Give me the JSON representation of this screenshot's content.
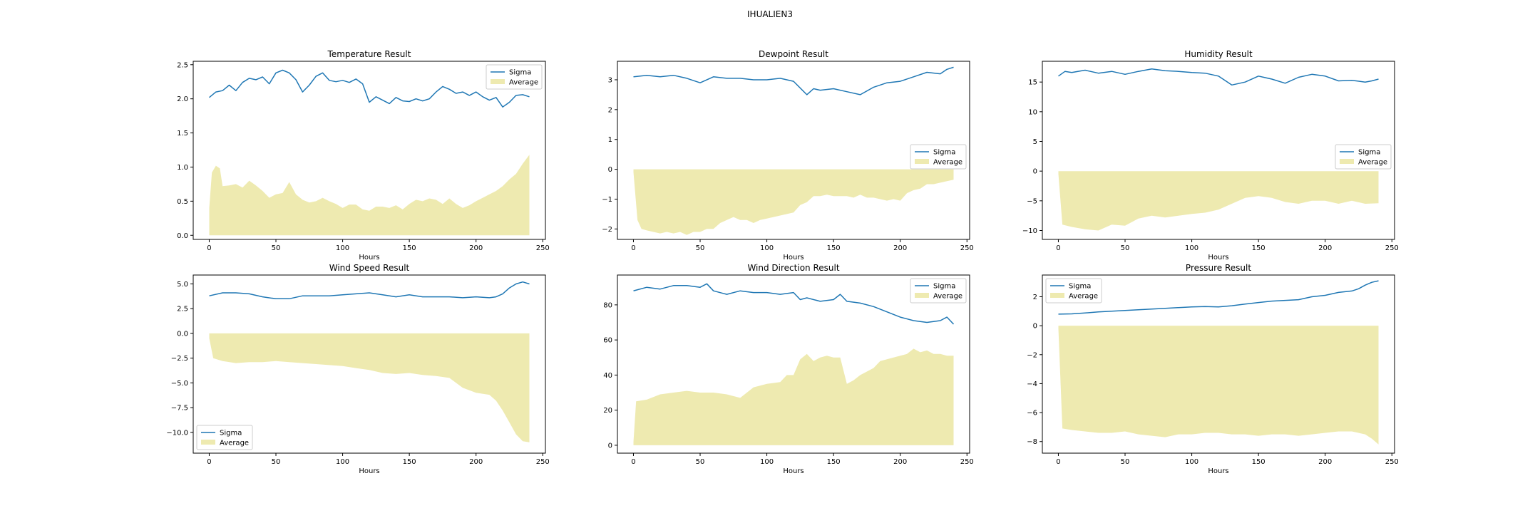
{
  "figure": {
    "suptitle": "IHUALIEN3"
  },
  "colors": {
    "sigma": "#1f77b4",
    "average": "#eeeab0",
    "legend_edge": "#cccccc"
  },
  "chart_data": [
    {
      "type": "area",
      "title": "Temperature Result",
      "xlabel": "Hours",
      "ylabel": "",
      "xlim": [
        -12,
        252
      ],
      "ylim": [
        -0.06,
        2.55
      ],
      "xticks": [
        0,
        50,
        100,
        150,
        200,
        250
      ],
      "yticks": [
        0.0,
        0.5,
        1.0,
        1.5,
        2.0,
        2.5
      ],
      "ytick_labels": [
        "0.0",
        "0.5",
        "1.0",
        "1.5",
        "2.0",
        "2.5"
      ],
      "legend": "top-right",
      "series": [
        {
          "name": "Sigma",
          "kind": "line",
          "x": [
            0,
            5,
            10,
            15,
            20,
            25,
            30,
            35,
            40,
            45,
            50,
            55,
            60,
            65,
            70,
            75,
            80,
            85,
            90,
            95,
            100,
            105,
            110,
            115,
            120,
            125,
            130,
            135,
            140,
            145,
            150,
            155,
            160,
            165,
            170,
            175,
            180,
            185,
            190,
            195,
            200,
            205,
            210,
            215,
            220,
            225,
            230,
            235,
            240
          ],
          "values": [
            2.02,
            2.1,
            2.12,
            2.2,
            2.12,
            2.24,
            2.3,
            2.28,
            2.32,
            2.22,
            2.38,
            2.42,
            2.38,
            2.28,
            2.1,
            2.2,
            2.33,
            2.38,
            2.27,
            2.25,
            2.27,
            2.24,
            2.29,
            2.22,
            1.95,
            2.03,
            1.98,
            1.93,
            2.02,
            1.97,
            1.96,
            2.0,
            1.97,
            2.0,
            2.1,
            2.18,
            2.14,
            2.08,
            2.1,
            2.05,
            2.1,
            2.03,
            1.98,
            2.02,
            1.88,
            1.95,
            2.05,
            2.06,
            2.03
          ]
        },
        {
          "name": "Average",
          "kind": "area",
          "x": [
            0,
            2,
            5,
            8,
            10,
            15,
            20,
            25,
            30,
            35,
            40,
            45,
            50,
            55,
            60,
            65,
            70,
            75,
            80,
            85,
            90,
            95,
            100,
            105,
            110,
            115,
            120,
            125,
            130,
            135,
            140,
            145,
            150,
            155,
            160,
            165,
            170,
            175,
            180,
            185,
            190,
            195,
            200,
            205,
            210,
            215,
            220,
            225,
            230,
            235,
            240
          ],
          "values": [
            0.4,
            0.92,
            1.02,
            0.98,
            0.72,
            0.73,
            0.75,
            0.7,
            0.8,
            0.73,
            0.65,
            0.55,
            0.6,
            0.62,
            0.78,
            0.6,
            0.52,
            0.48,
            0.5,
            0.55,
            0.5,
            0.46,
            0.4,
            0.45,
            0.45,
            0.38,
            0.36,
            0.42,
            0.42,
            0.4,
            0.44,
            0.38,
            0.46,
            0.52,
            0.5,
            0.54,
            0.52,
            0.46,
            0.54,
            0.46,
            0.4,
            0.44,
            0.5,
            0.55,
            0.6,
            0.65,
            0.72,
            0.82,
            0.9,
            1.05,
            1.18
          ]
        }
      ]
    },
    {
      "type": "area",
      "title": "Dewpoint Result",
      "xlabel": "Hours",
      "ylabel": "",
      "xlim": [
        -12,
        252
      ],
      "ylim": [
        -2.35,
        3.62
      ],
      "xticks": [
        0,
        50,
        100,
        150,
        200,
        250
      ],
      "yticks": [
        -2,
        -1,
        0,
        1,
        2,
        3
      ],
      "ytick_labels": [
        "−2",
        "−1",
        "0",
        "1",
        "2",
        "3"
      ],
      "legend": "center-right",
      "series": [
        {
          "name": "Sigma",
          "kind": "line",
          "x": [
            0,
            10,
            20,
            30,
            40,
            50,
            60,
            70,
            80,
            90,
            100,
            110,
            120,
            130,
            135,
            140,
            150,
            160,
            170,
            180,
            190,
            200,
            210,
            220,
            230,
            235,
            240
          ],
          "values": [
            3.1,
            3.15,
            3.1,
            3.15,
            3.05,
            2.9,
            3.1,
            3.05,
            3.05,
            3.0,
            3.0,
            3.05,
            2.95,
            2.5,
            2.7,
            2.65,
            2.7,
            2.6,
            2.5,
            2.75,
            2.9,
            2.95,
            3.1,
            3.25,
            3.2,
            3.35,
            3.42
          ]
        },
        {
          "name": "Average",
          "kind": "area",
          "x": [
            0,
            3,
            6,
            10,
            15,
            20,
            25,
            30,
            35,
            40,
            45,
            50,
            55,
            60,
            65,
            70,
            75,
            80,
            85,
            90,
            95,
            100,
            105,
            110,
            115,
            120,
            125,
            130,
            135,
            140,
            145,
            150,
            155,
            160,
            165,
            170,
            175,
            180,
            185,
            190,
            195,
            200,
            205,
            210,
            215,
            220,
            225,
            230,
            235,
            240
          ],
          "values": [
            -0.1,
            -1.7,
            -2.0,
            -2.05,
            -2.1,
            -2.15,
            -2.1,
            -2.15,
            -2.1,
            -2.2,
            -2.1,
            -2.1,
            -2.0,
            -2.0,
            -1.8,
            -1.7,
            -1.6,
            -1.7,
            -1.7,
            -1.8,
            -1.7,
            -1.65,
            -1.6,
            -1.55,
            -1.5,
            -1.45,
            -1.2,
            -1.1,
            -0.9,
            -0.9,
            -0.85,
            -0.9,
            -0.9,
            -0.9,
            -0.95,
            -0.85,
            -0.95,
            -0.95,
            -1.0,
            -1.05,
            -1.0,
            -1.05,
            -0.8,
            -0.7,
            -0.65,
            -0.5,
            -0.5,
            -0.45,
            -0.4,
            -0.35
          ]
        }
      ]
    },
    {
      "type": "area",
      "title": "Humidity Result",
      "xlabel": "Hours",
      "ylabel": "",
      "xlim": [
        -12,
        252
      ],
      "ylim": [
        -11.5,
        18.5
      ],
      "xticks": [
        0,
        50,
        100,
        150,
        200,
        250
      ],
      "yticks": [
        -10,
        -5,
        0,
        5,
        10,
        15
      ],
      "ytick_labels": [
        "−10",
        "−5",
        "0",
        "5",
        "10",
        "15"
      ],
      "legend": "center-right",
      "series": [
        {
          "name": "Sigma",
          "kind": "line",
          "x": [
            0,
            5,
            10,
            20,
            30,
            40,
            50,
            60,
            70,
            80,
            90,
            100,
            110,
            120,
            130,
            140,
            150,
            160,
            170,
            180,
            190,
            200,
            210,
            220,
            230,
            235,
            240
          ],
          "values": [
            16.0,
            16.8,
            16.6,
            17.0,
            16.5,
            16.8,
            16.3,
            16.8,
            17.2,
            16.9,
            16.8,
            16.6,
            16.5,
            16.0,
            14.5,
            15.0,
            16.0,
            15.5,
            14.8,
            15.8,
            16.3,
            16.0,
            15.2,
            15.3,
            15.0,
            15.2,
            15.5
          ]
        },
        {
          "name": "Average",
          "kind": "area",
          "x": [
            0,
            3,
            10,
            20,
            30,
            40,
            50,
            60,
            70,
            80,
            90,
            100,
            110,
            120,
            130,
            140,
            150,
            160,
            170,
            180,
            190,
            200,
            210,
            220,
            230,
            240
          ],
          "values": [
            -0.5,
            -9.0,
            -9.4,
            -9.8,
            -10.0,
            -9.0,
            -9.2,
            -8.0,
            -7.5,
            -7.8,
            -7.5,
            -7.2,
            -7.0,
            -6.5,
            -5.5,
            -4.5,
            -4.2,
            -4.5,
            -5.2,
            -5.5,
            -5.0,
            -5.0,
            -5.5,
            -5.0,
            -5.5,
            -5.4
          ]
        }
      ]
    },
    {
      "type": "area",
      "title": "Wind Speed Result",
      "xlabel": "Hours",
      "ylabel": "",
      "xlim": [
        -12,
        252
      ],
      "ylim": [
        -12.1,
        5.9
      ],
      "xticks": [
        0,
        50,
        100,
        150,
        200,
        250
      ],
      "yticks": [
        -10.0,
        -7.5,
        -5.0,
        -2.5,
        0.0,
        2.5,
        5.0
      ],
      "ytick_labels": [
        "−10.0",
        "−7.5",
        "−5.0",
        "−2.5",
        "0.0",
        "2.5",
        "5.0"
      ],
      "legend": "bottom-left",
      "series": [
        {
          "name": "Sigma",
          "kind": "line",
          "x": [
            0,
            10,
            20,
            30,
            40,
            50,
            60,
            70,
            80,
            90,
            100,
            110,
            120,
            130,
            140,
            150,
            160,
            170,
            180,
            190,
            200,
            210,
            215,
            220,
            225,
            230,
            235,
            240
          ],
          "values": [
            3.8,
            4.1,
            4.1,
            4.0,
            3.7,
            3.5,
            3.5,
            3.8,
            3.8,
            3.8,
            3.9,
            4.0,
            4.1,
            3.9,
            3.7,
            3.9,
            3.7,
            3.7,
            3.7,
            3.6,
            3.7,
            3.6,
            3.7,
            4.0,
            4.6,
            5.0,
            5.2,
            5.0
          ]
        },
        {
          "name": "Average",
          "kind": "area",
          "x": [
            0,
            3,
            10,
            20,
            30,
            40,
            50,
            60,
            70,
            80,
            90,
            100,
            110,
            120,
            130,
            140,
            150,
            160,
            170,
            180,
            190,
            200,
            210,
            215,
            220,
            225,
            230,
            235,
            240
          ],
          "values": [
            -0.5,
            -2.5,
            -2.8,
            -3.0,
            -2.9,
            -2.9,
            -2.8,
            -2.9,
            -3.0,
            -3.1,
            -3.2,
            -3.3,
            -3.5,
            -3.7,
            -4.0,
            -4.1,
            -4.0,
            -4.2,
            -4.3,
            -4.5,
            -5.5,
            -6.0,
            -6.2,
            -6.8,
            -7.8,
            -9.0,
            -10.2,
            -10.9,
            -11.0
          ]
        }
      ]
    },
    {
      "type": "area",
      "title": "Wind Direction Result",
      "xlabel": "Hours",
      "ylabel": "",
      "xlim": [
        -12,
        252
      ],
      "ylim": [
        -4.5,
        97
      ],
      "xticks": [
        0,
        50,
        100,
        150,
        200,
        250
      ],
      "yticks": [
        0,
        20,
        40,
        60,
        80
      ],
      "ytick_labels": [
        "0",
        "20",
        "40",
        "60",
        "80"
      ],
      "legend": "top-right",
      "series": [
        {
          "name": "Sigma",
          "kind": "line",
          "x": [
            0,
            10,
            20,
            30,
            40,
            50,
            55,
            60,
            70,
            80,
            90,
            100,
            110,
            120,
            125,
            130,
            140,
            150,
            155,
            160,
            170,
            180,
            190,
            200,
            210,
            220,
            230,
            235,
            240
          ],
          "values": [
            88,
            90,
            89,
            91,
            91,
            90,
            92,
            88,
            86,
            88,
            87,
            87,
            86,
            87,
            83,
            84,
            82,
            83,
            86,
            82,
            81,
            79,
            76,
            73,
            71,
            70,
            71,
            73,
            69
          ]
        },
        {
          "name": "Average",
          "kind": "area",
          "x": [
            0,
            2,
            10,
            20,
            30,
            40,
            50,
            60,
            70,
            80,
            90,
            100,
            110,
            115,
            120,
            125,
            130,
            135,
            140,
            145,
            150,
            155,
            160,
            165,
            170,
            175,
            180,
            185,
            190,
            195,
            200,
            205,
            210,
            215,
            220,
            225,
            230,
            235,
            240
          ],
          "values": [
            2,
            25,
            26,
            29,
            30,
            31,
            30,
            30,
            29,
            27,
            33,
            35,
            36,
            40,
            40,
            49,
            52,
            48,
            50,
            51,
            50,
            50,
            35,
            37,
            40,
            42,
            44,
            48,
            49,
            50,
            51,
            52,
            55,
            53,
            54,
            52,
            52,
            51,
            51
          ]
        }
      ]
    },
    {
      "type": "area",
      "title": "Pressure Result",
      "xlabel": "Hours",
      "ylabel": "",
      "xlim": [
        -12,
        252
      ],
      "ylim": [
        -8.8,
        3.5
      ],
      "xticks": [
        0,
        50,
        100,
        150,
        200,
        250
      ],
      "yticks": [
        -8,
        -6,
        -4,
        -2,
        0,
        2
      ],
      "ytick_labels": [
        "−8",
        "−6",
        "−4",
        "−2",
        "0",
        "2"
      ],
      "legend": "top-left",
      "series": [
        {
          "name": "Sigma",
          "kind": "line",
          "x": [
            0,
            10,
            20,
            30,
            40,
            50,
            60,
            70,
            80,
            90,
            100,
            110,
            120,
            130,
            140,
            150,
            160,
            170,
            180,
            190,
            200,
            210,
            220,
            225,
            230,
            235,
            240
          ],
          "values": [
            0.8,
            0.82,
            0.88,
            0.95,
            1.0,
            1.05,
            1.1,
            1.15,
            1.2,
            1.25,
            1.3,
            1.32,
            1.3,
            1.38,
            1.5,
            1.6,
            1.7,
            1.75,
            1.8,
            2.0,
            2.1,
            2.3,
            2.4,
            2.55,
            2.8,
            3.0,
            3.1
          ]
        },
        {
          "name": "Average",
          "kind": "area",
          "x": [
            0,
            3,
            10,
            20,
            30,
            40,
            50,
            60,
            70,
            80,
            90,
            100,
            110,
            120,
            130,
            140,
            150,
            160,
            170,
            180,
            190,
            200,
            210,
            220,
            230,
            235,
            240
          ],
          "values": [
            -0.2,
            -7.1,
            -7.2,
            -7.3,
            -7.4,
            -7.4,
            -7.3,
            -7.5,
            -7.6,
            -7.7,
            -7.5,
            -7.5,
            -7.4,
            -7.4,
            -7.5,
            -7.5,
            -7.6,
            -7.5,
            -7.5,
            -7.6,
            -7.5,
            -7.4,
            -7.3,
            -7.3,
            -7.5,
            -7.8,
            -8.2
          ]
        }
      ]
    }
  ]
}
